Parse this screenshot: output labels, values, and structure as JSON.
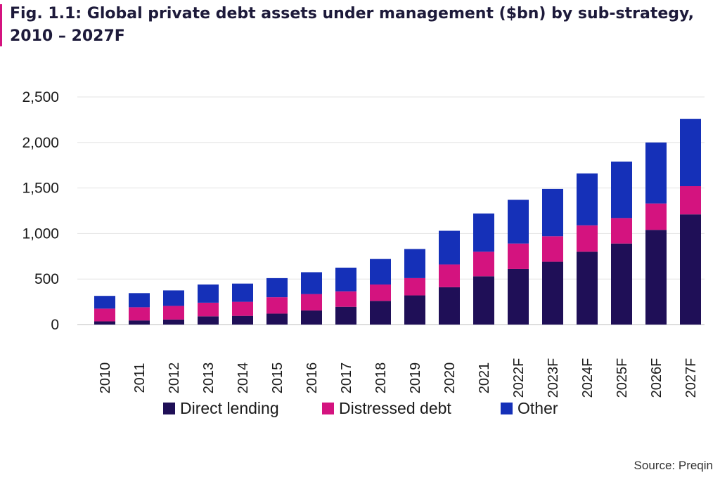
{
  "colors": {
    "direct_lending": "#1f0f57",
    "distressed_debt": "#d4137f",
    "other": "#1530b8",
    "accent_bar": "#d4137f",
    "grid": "#e3e3e3",
    "text": "#1a1a1a"
  },
  "source": "Source: Preqin",
  "chart_data": {
    "type": "bar",
    "stacked": true,
    "title": "Fig. 1.1: Global private debt assets under management ($bn) by sub-strategy, 2010 – 2027F",
    "xlabel": "",
    "ylabel": "",
    "ylim": [
      0,
      2500
    ],
    "yticks": [
      0,
      500,
      1000,
      1500,
      2000,
      2500
    ],
    "ytick_labels": [
      "0",
      "500",
      "1,000",
      "1,500",
      "2,000",
      "2,500"
    ],
    "grid": true,
    "legend_position": "bottom",
    "categories": [
      "2010",
      "2011",
      "2012",
      "2013",
      "2014",
      "2015",
      "2016",
      "2017",
      "2018",
      "2019",
      "2020",
      "2021",
      "2022F",
      "2023F",
      "2024F",
      "2025F",
      "2026F",
      "2027F"
    ],
    "series": [
      {
        "name": "Direct lending",
        "color_key": "direct_lending",
        "values": [
          35,
          45,
          55,
          90,
          95,
          120,
          155,
          195,
          260,
          320,
          410,
          530,
          610,
          690,
          800,
          890,
          1040,
          1210
        ]
      },
      {
        "name": "Distressed debt",
        "color_key": "distressed_debt",
        "values": [
          140,
          145,
          150,
          150,
          155,
          180,
          180,
          170,
          180,
          190,
          250,
          270,
          280,
          280,
          290,
          280,
          290,
          310
        ]
      },
      {
        "name": "Other",
        "color_key": "other",
        "values": [
          140,
          155,
          170,
          200,
          200,
          210,
          240,
          260,
          280,
          320,
          370,
          420,
          480,
          520,
          570,
          620,
          670,
          740
        ]
      }
    ]
  }
}
